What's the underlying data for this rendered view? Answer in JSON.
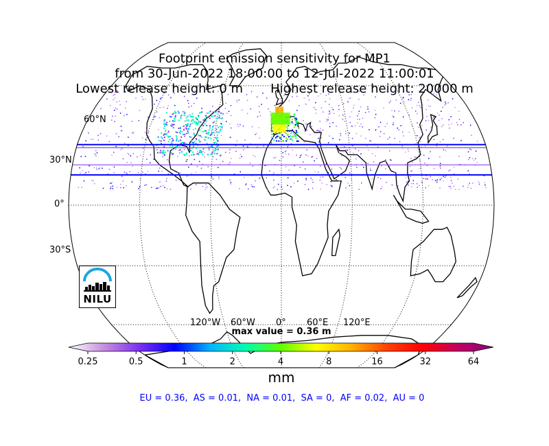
{
  "title": {
    "line1": "Footprint emission sensitivity for MP1",
    "line2": "from 30-Jun-2022 18:00:00 to 12-Jul-2022 11:00:01",
    "line3": "Lowest release height: 0 m       Highest release height: 20000 m"
  },
  "map": {
    "projection": "robinson",
    "lat_labels": [
      "60°N",
      "30°N",
      "0°",
      "30°S"
    ],
    "lon_labels": [
      "120°W",
      "60°W",
      "0°",
      "60°E",
      "120°E"
    ],
    "max_value": "max value = 0.36 m",
    "logo_text": "NILU"
  },
  "colorbar": {
    "ticks": [
      "0.25",
      "0.5",
      "1",
      "2",
      "4",
      "8",
      "16",
      "32",
      "64"
    ],
    "units": "mm",
    "colors": [
      "#ffffff",
      "#c88ee0",
      "#7b2ff0",
      "#0000ff",
      "#00b4ff",
      "#00ffb0",
      "#60ff00",
      "#ffff00",
      "#ffb000",
      "#ff4000",
      "#ff0000",
      "#c00060",
      "#8b0080"
    ]
  },
  "regions": "EU = 0.36,  AS = 0.01,  NA = 0.01,  SA = 0,  AF = 0.02,  AU = 0"
}
